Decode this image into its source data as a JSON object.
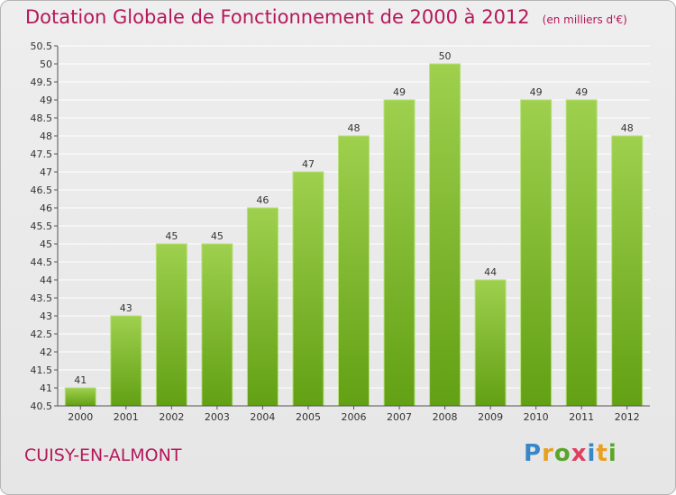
{
  "chart_data": {
    "type": "bar",
    "title": "Dotation Globale de Fonctionnement de 2000 à 2012",
    "subtitle": "(en milliers d'€)",
    "categories": [
      "2000",
      "2001",
      "2002",
      "2003",
      "2004",
      "2005",
      "2006",
      "2007",
      "2008",
      "2009",
      "2010",
      "2011",
      "2012"
    ],
    "values": [
      41,
      43,
      45,
      45,
      46,
      47,
      48,
      49,
      50,
      44,
      49,
      49,
      48
    ],
    "value_labels": [
      "41",
      "43",
      "45",
      "45",
      "46",
      "47",
      "48",
      "49",
      "50",
      "44",
      "49",
      "49",
      "48"
    ],
    "ylim": [
      40.5,
      50.5
    ],
    "yticks": [
      40.5,
      41,
      41.5,
      42,
      42.5,
      43,
      43.5,
      44,
      44.5,
      45,
      45.5,
      46,
      46.5,
      47,
      47.5,
      48,
      48.5,
      49,
      49.5,
      50,
      50.5
    ],
    "ytick_labels": [
      "40.5",
      "41",
      "41.5",
      "42",
      "42.5",
      "43",
      "43.5",
      "44",
      "44.5",
      "45",
      "45.5",
      "46",
      "46.5",
      "47",
      "47.5",
      "48",
      "48.5",
      "49",
      "49.5",
      "50",
      "50.5"
    ],
    "grid": true,
    "bar_color": "#7cc02c",
    "xlabel": "",
    "ylabel": ""
  },
  "footer": {
    "commune": "CUISY-EN-ALMONT",
    "logo": {
      "p": "P",
      "r": "r",
      "o": "o",
      "x": "x",
      "i1": "i",
      "t": "t",
      "i2": "i"
    }
  },
  "colors": {
    "title": "#b5175a",
    "grid": "#ffffff",
    "background": "#e8e8e8"
  }
}
